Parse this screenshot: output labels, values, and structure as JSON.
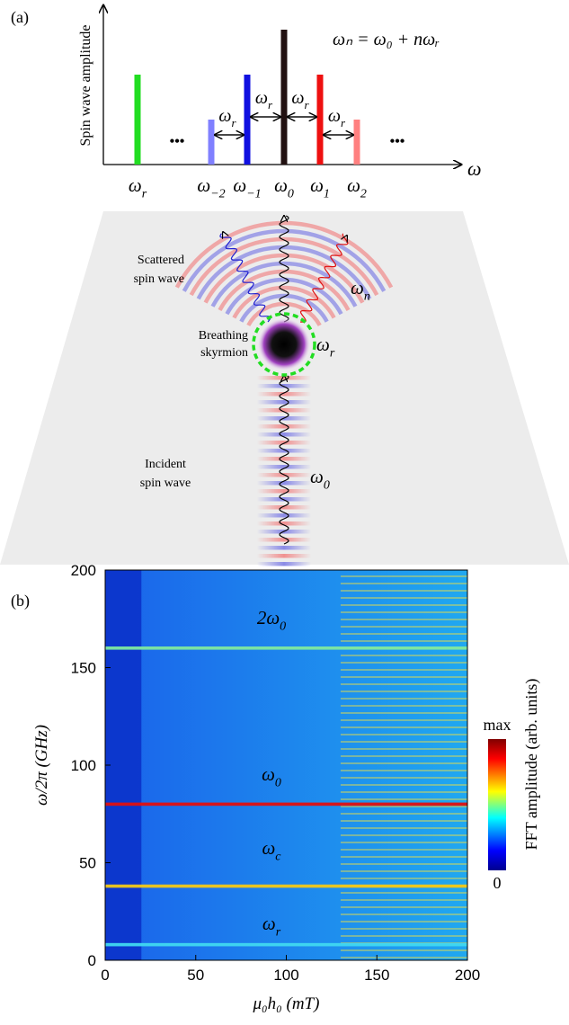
{
  "panel_a": {
    "tag": "(a)",
    "ylabel": "Spin wave amplitude",
    "xlabel": "ω",
    "equation": "ωₙ = ω₀ + nωᵣ",
    "lines": [
      {
        "label": {
          "base": "ω",
          "sub": "r"
        },
        "amplitude": 2,
        "color": "#22dd22"
      },
      {
        "label": {
          "base": "ω",
          "sub": "−2"
        },
        "amplitude": 1,
        "color": "#8080ff"
      },
      {
        "label": {
          "base": "ω",
          "sub": "−1"
        },
        "amplitude": 2,
        "color": "#1010e0"
      },
      {
        "label": {
          "base": "ω",
          "sub": "0"
        },
        "amplitude": 3,
        "color": "#221111"
      },
      {
        "label": {
          "base": "ω",
          "sub": "1"
        },
        "amplitude": 2,
        "color": "#ee1010"
      },
      {
        "label": {
          "base": "ω",
          "sub": "2"
        },
        "amplitude": 1,
        "color": "#ff8080"
      }
    ],
    "spacing_labels": [
      {
        "base": "ω",
        "sub": "r"
      },
      {
        "base": "ω",
        "sub": "r"
      },
      {
        "base": "ω",
        "sub": "r"
      },
      {
        "base": "ω",
        "sub": "r"
      }
    ],
    "ellipsis": [
      "•••",
      "•••"
    ]
  },
  "schematic": {
    "scattered": [
      "Scattered",
      "spin wave"
    ],
    "scattered_freq": {
      "base": "ω",
      "sub": "n"
    },
    "skyrmion": [
      "Breathing",
      "skyrmion"
    ],
    "skyrmion_freq": {
      "base": "ω",
      "sub": "r"
    },
    "incident": [
      "Incident",
      "spin wave"
    ],
    "incident_freq": {
      "base": "ω",
      "sub": "0"
    }
  },
  "chart_data": {
    "type": "heatmap",
    "tag": "(b)",
    "xlabel": "μ₀h₀ (mT)",
    "ylabel": "ω/2π (GHz)",
    "xlim": [
      0,
      200
    ],
    "ylim": [
      0,
      200
    ],
    "xticks": [
      0,
      50,
      100,
      150,
      200
    ],
    "yticks": [
      0,
      50,
      100,
      150,
      200
    ],
    "lines": [
      {
        "y": 160,
        "color": "#7ee8a0"
      },
      {
        "y": 80,
        "color": "#e01010"
      },
      {
        "y": 38,
        "color": "#f2c818"
      },
      {
        "y": 8,
        "color": "#40d8f0"
      }
    ],
    "annotations": [
      {
        "base": "2ω",
        "sub": "0"
      },
      {
        "base": "ω",
        "sub": "0"
      },
      {
        "base": "ω",
        "sub": "c"
      },
      {
        "base": "ω",
        "sub": "r"
      }
    ],
    "colorbar": {
      "max": "max",
      "min": "0",
      "label": "FFT amplitude (arb. units)"
    }
  }
}
